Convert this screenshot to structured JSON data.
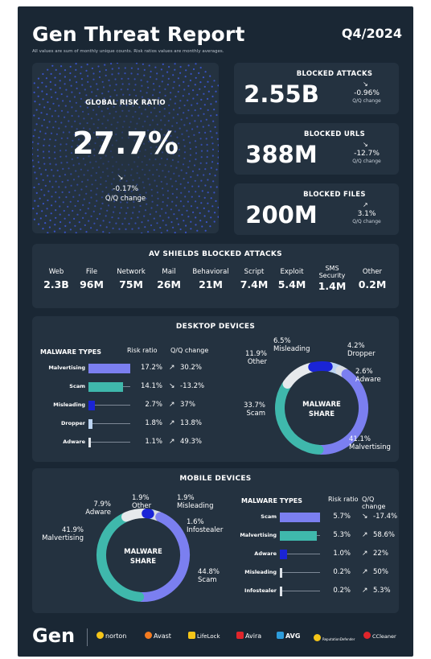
{
  "header": {
    "title": "Gen Threat Report",
    "quarter": "Q4/2024",
    "note": "All values are sum of monthly unique counts. Risk ratios values are monthly averages."
  },
  "global_risk": {
    "label": "GLOBAL RISK RATIO",
    "value": "27.7%",
    "change": "-0.17%",
    "change_label": "Q/Q change"
  },
  "blocked": [
    {
      "label": "BLOCKED ATTACKS",
      "value": "2.55B",
      "change": "-0.96%",
      "change_label": "Q/Q change",
      "trend": "down"
    },
    {
      "label": "BLOCKED URLS",
      "value": "388M",
      "change": "-12.7%",
      "change_label": "Q/Q change",
      "trend": "down"
    },
    {
      "label": "BLOCKED FILES",
      "value": "200M",
      "change": "3.1%",
      "change_label": "Q/Q change",
      "trend": "up"
    }
  ],
  "av_shields": {
    "title": "AV SHIELDS BLOCKED ATTACKS",
    "items": [
      {
        "name": "Web",
        "value": "2.3B"
      },
      {
        "name": "File",
        "value": "96M"
      },
      {
        "name": "Network",
        "value": "75M"
      },
      {
        "name": "Mail",
        "value": "26M"
      },
      {
        "name": "Behavioral",
        "value": "21M"
      },
      {
        "name": "Script",
        "value": "7.4M"
      },
      {
        "name": "Exploit",
        "value": "5.4M"
      },
      {
        "name": "SMS Security",
        "value": "1.4M"
      },
      {
        "name": "Other",
        "value": "0.2M"
      }
    ]
  },
  "desktop": {
    "title": "DESKTOP DEVICES",
    "table_headers": {
      "types": "MALWARE TYPES",
      "ratio": "Risk ratio",
      "qq": "Q/Q change"
    },
    "rows": [
      {
        "name": "Malvertising",
        "ratio": "17.2%",
        "ratio_value": 17.2,
        "qq": "30.2%",
        "trend": "up",
        "color": "#7b7ff0"
      },
      {
        "name": "Scam",
        "ratio": "14.1%",
        "ratio_value": 14.1,
        "qq": "-13.2%",
        "trend": "down",
        "color": "#3fb8ac"
      },
      {
        "name": "Misleading",
        "ratio": "2.7%",
        "ratio_value": 2.7,
        "qq": "37%",
        "trend": "up",
        "color": "#1a24d6"
      },
      {
        "name": "Dropper",
        "ratio": "1.8%",
        "ratio_value": 1.8,
        "qq": "13.8%",
        "trend": "up",
        "color": "#bcd4f2"
      },
      {
        "name": "Adware",
        "ratio": "1.1%",
        "ratio_value": 1.1,
        "qq": "49.3%",
        "trend": "up",
        "color": "#dfe4ea"
      }
    ],
    "donut_center": [
      "MALWARE",
      "SHARE"
    ],
    "donut": [
      {
        "name": "Malvertising",
        "pct": 41.1,
        "label": "41.1%",
        "color": "#7b7ff0"
      },
      {
        "name": "Scam",
        "pct": 33.7,
        "label": "33.7%",
        "color": "#3fb8ac"
      },
      {
        "name": "Other",
        "pct": 11.9,
        "label": "11.9%",
        "color": "#e6e9ec"
      },
      {
        "name": "Misleading",
        "pct": 6.5,
        "label": "6.5%",
        "color": "#1a24d6"
      },
      {
        "name": "Dropper",
        "pct": 4.2,
        "label": "4.2%",
        "color": "#bcd4f2"
      },
      {
        "name": "Adware",
        "pct": 2.6,
        "label": "2.6%",
        "color": "#d9dde3"
      }
    ]
  },
  "mobile": {
    "title": "MOBILE DEVICES",
    "table_headers": {
      "types": "MALWARE TYPES",
      "ratio": "Risk ratio",
      "qq": "Q/Q change"
    },
    "rows": [
      {
        "name": "Scam",
        "ratio": "5.7%",
        "ratio_value": 5.7,
        "qq": "-17.4%",
        "trend": "down",
        "color": "#7b7ff0"
      },
      {
        "name": "Malvertising",
        "ratio": "5.3%",
        "ratio_value": 5.3,
        "qq": "58.6%",
        "trend": "up",
        "color": "#3fb8ac"
      },
      {
        "name": "Adware",
        "ratio": "1.0%",
        "ratio_value": 1.0,
        "qq": "22%",
        "trend": "up",
        "color": "#1a24d6"
      },
      {
        "name": "Misleading",
        "ratio": "0.2%",
        "ratio_value": 0.2,
        "qq": "50%",
        "trend": "up",
        "color": "#dfe4ea"
      },
      {
        "name": "Infostealer",
        "ratio": "0.2%",
        "ratio_value": 0.2,
        "qq": "5.3%",
        "trend": "up",
        "color": "#dfe4ea"
      }
    ],
    "donut_center": [
      "MALWARE",
      "SHARE"
    ],
    "donut": [
      {
        "name": "Scam",
        "pct": 44.8,
        "label": "44.8%",
        "color": "#7b7ff0"
      },
      {
        "name": "Malvertising",
        "pct": 41.9,
        "label": "41.9%",
        "color": "#3fb8ac"
      },
      {
        "name": "Adware",
        "pct": 7.9,
        "label": "7.9%",
        "color": "#e6e9ec"
      },
      {
        "name": "Other",
        "pct": 1.9,
        "label": "1.9%",
        "color": "#1a24d6"
      },
      {
        "name": "Misleading",
        "pct": 1.9,
        "label": "1.9%",
        "color": "#bcd4f2"
      },
      {
        "name": "Infostealer",
        "pct": 1.6,
        "label": "1.6%",
        "color": "#d9dde3"
      }
    ]
  },
  "footer": {
    "logo": "Gen",
    "brands": [
      {
        "name": "norton",
        "color": "#f5c518"
      },
      {
        "name": "Avast",
        "color": "#f47b20"
      },
      {
        "name": "LifeLock",
        "color": "#f5c518"
      },
      {
        "name": "Avira",
        "color": "#e0252b"
      },
      {
        "name": "AVG",
        "color": "#2d9cdb"
      },
      {
        "name": "ReputationDefender",
        "color": "#f5c518"
      },
      {
        "name": "CCleaner",
        "color": "#e0252b"
      }
    ]
  }
}
